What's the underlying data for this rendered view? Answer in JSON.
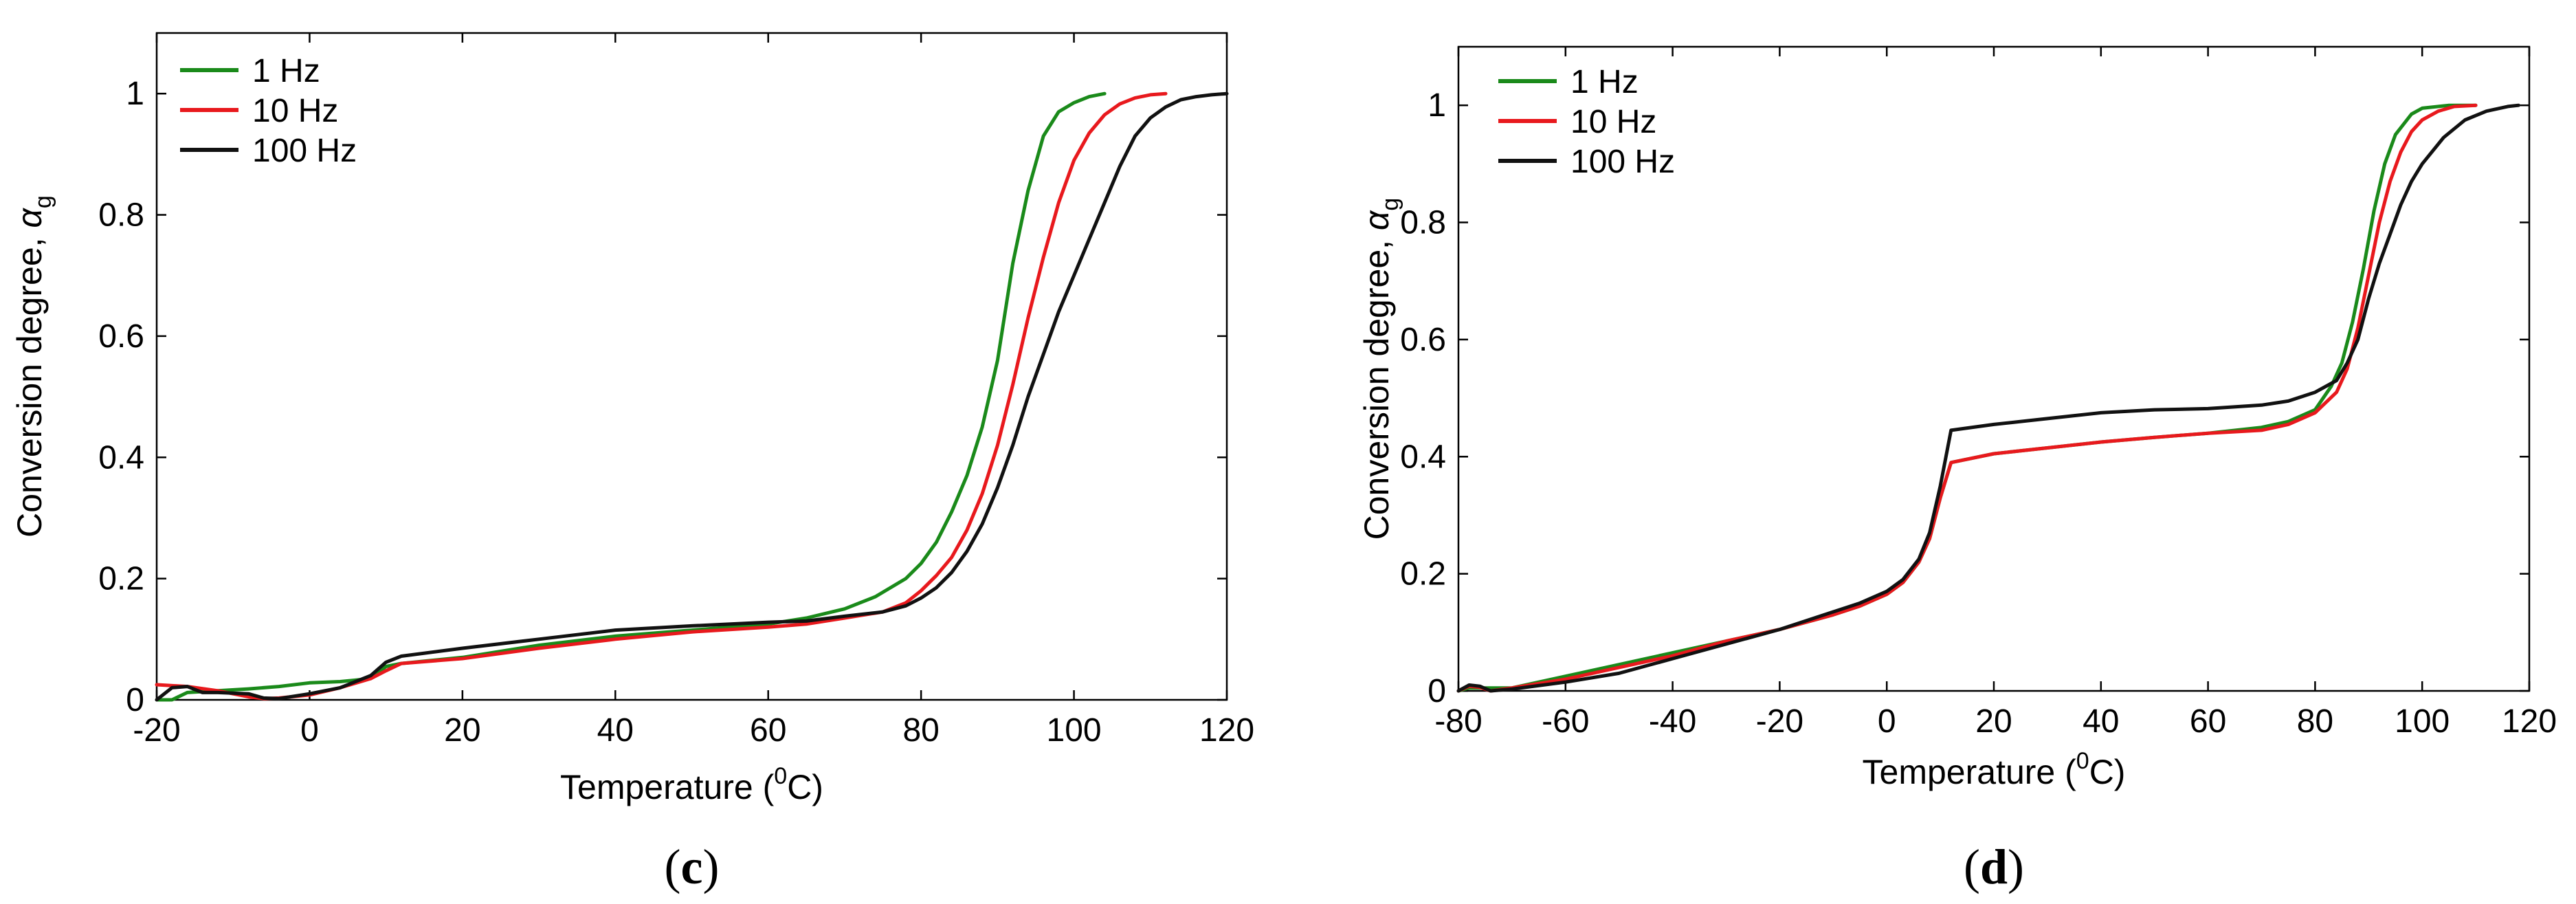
{
  "chart_data": [
    {
      "type": "line",
      "panel_label": "c",
      "xlabel_main": "Temperature (",
      "xlabel_sup": "0",
      "xlabel_end": "C)",
      "ylabel_main": "Conversion degree, ",
      "ylabel_symbol": "α",
      "ylabel_sub": "g",
      "xlim": [
        -20,
        120
      ],
      "ylim": [
        0,
        1.1
      ],
      "xticks": [
        -20,
        0,
        20,
        40,
        60,
        80,
        100,
        120
      ],
      "xtick_labels": [
        "-20",
        "0",
        "20",
        "40",
        "60",
        "80",
        "100",
        "120"
      ],
      "yticks": [
        0,
        0.2,
        0.4,
        0.6,
        0.8,
        1
      ],
      "ytick_labels": [
        "0",
        "0.2",
        "0.4",
        "0.6",
        "0.8",
        "1"
      ],
      "legend_position": "top-left",
      "series": [
        {
          "name": "1 Hz",
          "color": "#1a8a1a",
          "x": [
            -20,
            -18,
            -16,
            -12,
            -8,
            -4,
            0,
            4,
            8,
            10,
            12,
            20,
            30,
            40,
            50,
            60,
            65,
            70,
            74,
            78,
            80,
            82,
            84,
            86,
            88,
            90,
            92,
            94,
            96,
            98,
            100,
            102,
            104
          ],
          "y": [
            0,
            0,
            0.012,
            0.015,
            0.018,
            0.022,
            0.028,
            0.03,
            0.035,
            0.055,
            0.06,
            0.07,
            0.09,
            0.105,
            0.115,
            0.125,
            0.135,
            0.15,
            0.17,
            0.2,
            0.225,
            0.26,
            0.31,
            0.37,
            0.45,
            0.56,
            0.72,
            0.84,
            0.93,
            0.97,
            0.985,
            0.995,
            1.0
          ]
        },
        {
          "name": "10 Hz",
          "color": "#e8191d",
          "x": [
            -20,
            -16,
            -12,
            -8,
            -6,
            -4,
            0,
            4,
            8,
            10,
            12,
            20,
            30,
            40,
            50,
            60,
            65,
            70,
            75,
            78,
            80,
            82,
            84,
            86,
            88,
            90,
            92,
            94,
            96,
            98,
            100,
            102,
            104,
            106,
            108,
            110,
            112
          ],
          "y": [
            0.025,
            0.022,
            0.015,
            0.005,
            0.002,
            0.003,
            0.008,
            0.02,
            0.035,
            0.048,
            0.06,
            0.068,
            0.085,
            0.1,
            0.112,
            0.12,
            0.125,
            0.135,
            0.145,
            0.16,
            0.18,
            0.205,
            0.235,
            0.28,
            0.34,
            0.42,
            0.52,
            0.63,
            0.73,
            0.82,
            0.89,
            0.935,
            0.965,
            0.983,
            0.993,
            0.998,
            1.0
          ]
        },
        {
          "name": "100 Hz",
          "color": "#111111",
          "x": [
            -20,
            -18,
            -16,
            -14,
            -12,
            -8,
            -6,
            -4,
            0,
            4,
            8,
            10,
            12,
            20,
            30,
            40,
            50,
            60,
            65,
            70,
            75,
            78,
            80,
            82,
            84,
            86,
            88,
            90,
            92,
            94,
            96,
            98,
            100,
            102,
            104,
            106,
            108,
            110,
            112,
            114,
            116,
            118,
            120
          ],
          "y": [
            0,
            0.02,
            0.022,
            0.012,
            0.012,
            0.01,
            0.003,
            0.002,
            0.01,
            0.02,
            0.04,
            0.062,
            0.072,
            0.085,
            0.1,
            0.115,
            0.122,
            0.128,
            0.13,
            0.138,
            0.145,
            0.155,
            0.168,
            0.185,
            0.21,
            0.245,
            0.29,
            0.35,
            0.42,
            0.5,
            0.57,
            0.64,
            0.7,
            0.76,
            0.82,
            0.88,
            0.93,
            0.96,
            0.978,
            0.99,
            0.995,
            0.998,
            1.0
          ]
        }
      ]
    },
    {
      "type": "line",
      "panel_label": "d",
      "xlabel_main": "Temperature (",
      "xlabel_sup": "0",
      "xlabel_end": "C)",
      "ylabel_main": "Conversion degree, ",
      "ylabel_symbol": "α",
      "ylabel_sub": "g",
      "xlim": [
        -80,
        120
      ],
      "ylim": [
        0,
        1.1
      ],
      "xticks": [
        -80,
        -60,
        -40,
        -20,
        0,
        20,
        40,
        60,
        80,
        100,
        120
      ],
      "xtick_labels": [
        "-80",
        "-60",
        "-40",
        "-20",
        "0",
        "20",
        "40",
        "60",
        "80",
        "100",
        "120"
      ],
      "yticks": [
        0,
        0.2,
        0.4,
        0.6,
        0.8,
        1
      ],
      "ytick_labels": [
        "0",
        "0.2",
        "0.4",
        "0.6",
        "0.8",
        "1"
      ],
      "legend_position": "top-left",
      "series": [
        {
          "name": "1 Hz",
          "color": "#1a8a1a",
          "x": [
            -80,
            -78,
            -75,
            -70,
            -60,
            -50,
            -40,
            -30,
            -20,
            -10,
            -5,
            0,
            3,
            6,
            8,
            10,
            12,
            20,
            30,
            40,
            50,
            60,
            70,
            75,
            80,
            83,
            85,
            87,
            89,
            91,
            93,
            95,
            98,
            100,
            105,
            110
          ],
          "y": [
            0,
            0.005,
            0.005,
            0.005,
            0.025,
            0.045,
            0.065,
            0.085,
            0.105,
            0.13,
            0.145,
            0.165,
            0.185,
            0.22,
            0.26,
            0.33,
            0.39,
            0.405,
            0.415,
            0.425,
            0.433,
            0.44,
            0.45,
            0.46,
            0.48,
            0.52,
            0.56,
            0.63,
            0.72,
            0.82,
            0.9,
            0.95,
            0.985,
            0.995,
            1.0,
            1.0
          ]
        },
        {
          "name": "10 Hz",
          "color": "#e8191d",
          "x": [
            -80,
            -78,
            -76,
            -74,
            -70,
            -60,
            -50,
            -40,
            -30,
            -20,
            -10,
            -5,
            0,
            3,
            6,
            8,
            10,
            12,
            20,
            30,
            40,
            50,
            60,
            70,
            75,
            80,
            84,
            86,
            88,
            90,
            92,
            94,
            96,
            98,
            100,
            103,
            106,
            110
          ],
          "y": [
            0,
            0.008,
            0.006,
            0.0,
            0.005,
            0.02,
            0.04,
            0.06,
            0.085,
            0.105,
            0.13,
            0.145,
            0.165,
            0.185,
            0.22,
            0.26,
            0.33,
            0.39,
            0.405,
            0.415,
            0.425,
            0.433,
            0.44,
            0.445,
            0.455,
            0.475,
            0.51,
            0.55,
            0.62,
            0.71,
            0.8,
            0.87,
            0.92,
            0.955,
            0.975,
            0.99,
            0.998,
            1.0
          ]
        },
        {
          "name": "100 Hz",
          "color": "#111111",
          "x": [
            -80,
            -78,
            -76,
            -74,
            -70,
            -60,
            -50,
            -40,
            -30,
            -20,
            -10,
            -5,
            0,
            3,
            6,
            8,
            10,
            12,
            20,
            30,
            40,
            50,
            60,
            70,
            75,
            80,
            84,
            86,
            88,
            90,
            92,
            94,
            96,
            98,
            100,
            104,
            108,
            112,
            116,
            118
          ],
          "y": [
            0,
            0.01,
            0.008,
            0.0,
            0.003,
            0.015,
            0.03,
            0.055,
            0.08,
            0.105,
            0.135,
            0.15,
            0.17,
            0.19,
            0.225,
            0.27,
            0.35,
            0.445,
            0.455,
            0.465,
            0.475,
            0.48,
            0.482,
            0.488,
            0.495,
            0.51,
            0.53,
            0.56,
            0.6,
            0.67,
            0.73,
            0.78,
            0.83,
            0.87,
            0.9,
            0.945,
            0.975,
            0.99,
            0.998,
            1.0
          ]
        }
      ]
    }
  ]
}
